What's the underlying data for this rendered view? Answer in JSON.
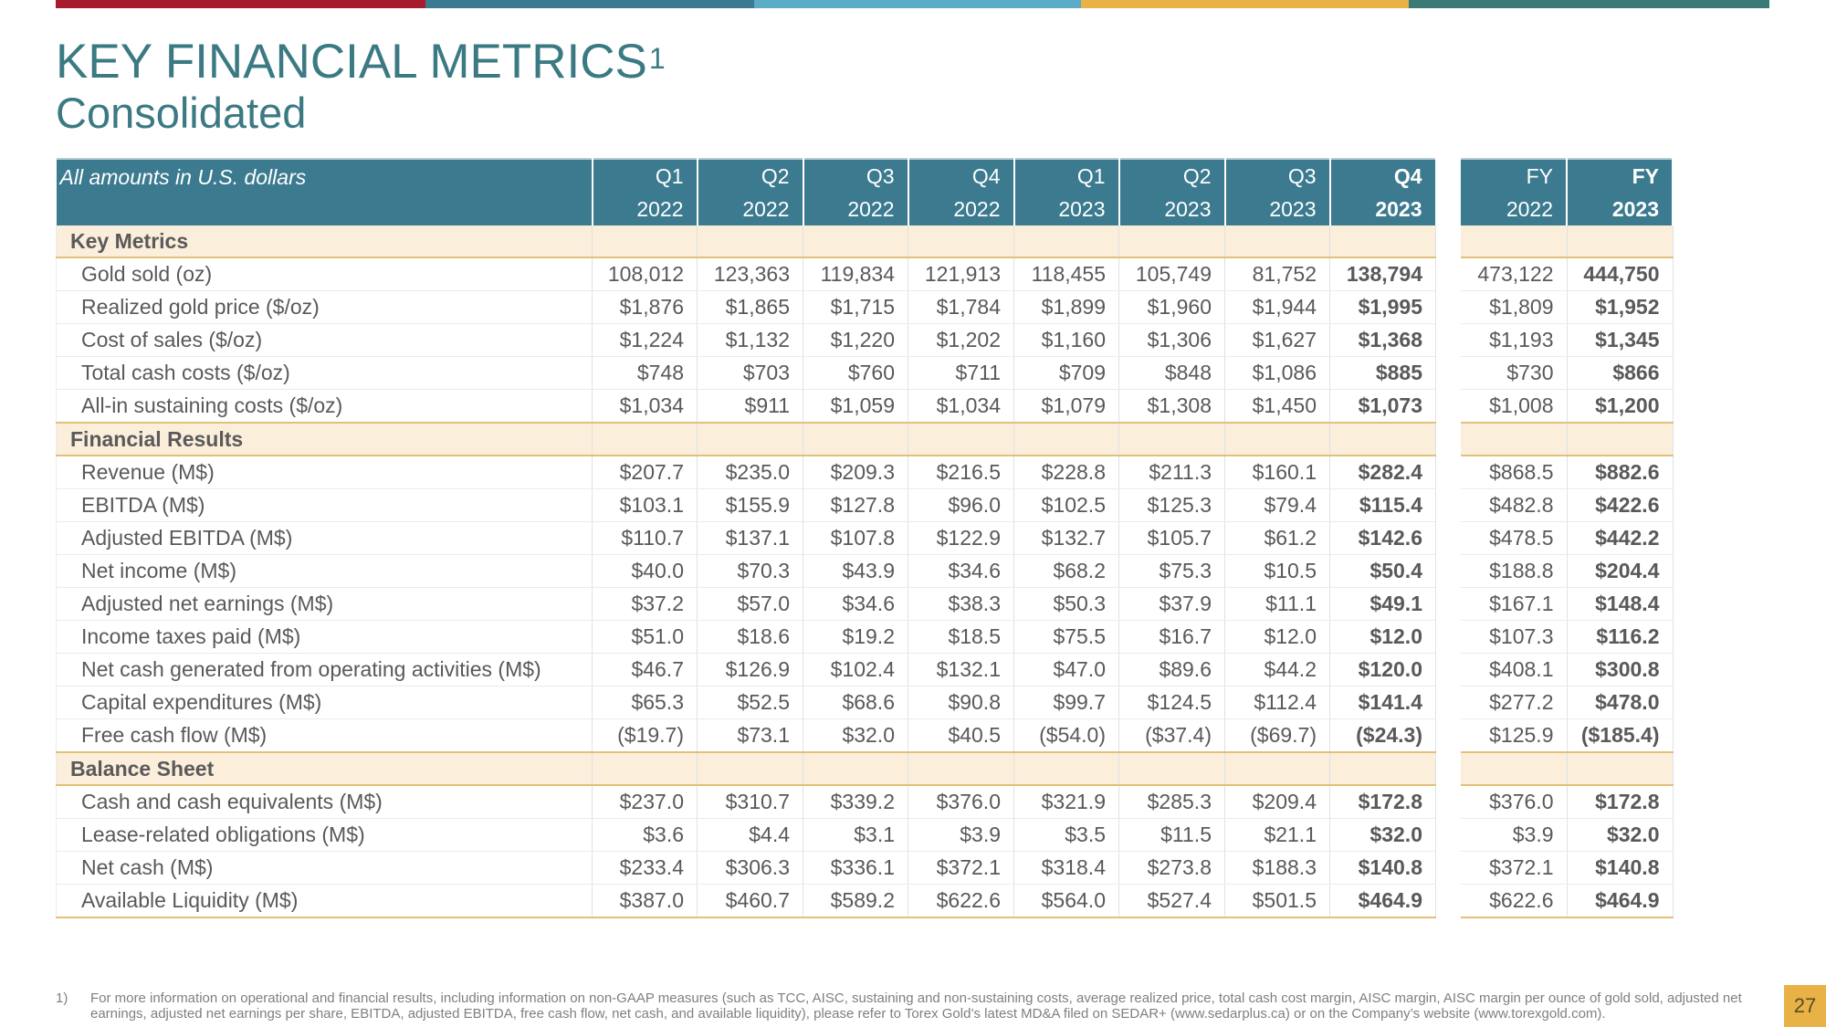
{
  "colors": {
    "bar": [
      "#a61c2d",
      "#3c7a8f",
      "#5aacc6",
      "#e9b247",
      "#3c7a78"
    ],
    "title": "#3b7a83",
    "header_bg": "#3c7a8f",
    "section_bg": "#fbeedb",
    "page_box": "#e9b247"
  },
  "title": "KEY FINANCIAL METRICS",
  "title_sup": "1",
  "subtitle": "Consolidated",
  "table": {
    "unit_note": "All amounts in U.S. dollars",
    "quarters": [
      {
        "q": "Q1",
        "y": "2022",
        "bold": false
      },
      {
        "q": "Q2",
        "y": "2022",
        "bold": false
      },
      {
        "q": "Q3",
        "y": "2022",
        "bold": false
      },
      {
        "q": "Q4",
        "y": "2022",
        "bold": false
      },
      {
        "q": "Q1",
        "y": "2023",
        "bold": false
      },
      {
        "q": "Q2",
        "y": "2023",
        "bold": false
      },
      {
        "q": "Q3",
        "y": "2023",
        "bold": false
      },
      {
        "q": "Q4",
        "y": "2023",
        "bold": true
      }
    ],
    "fy": [
      {
        "q": "FY",
        "y": "2022",
        "bold": false
      },
      {
        "q": "FY",
        "y": "2023",
        "bold": true
      }
    ],
    "sections": [
      {
        "title": "Key Metrics",
        "rows": [
          {
            "label": "Gold sold (oz)",
            "q": [
              "108,012",
              "123,363",
              "119,834",
              "121,913",
              "118,455",
              "105,749",
              "81,752",
              "138,794"
            ],
            "fy": [
              "473,122",
              "444,750"
            ]
          },
          {
            "label": "Realized gold price ($/oz)",
            "q": [
              "$1,876",
              "$1,865",
              "$1,715",
              "$1,784",
              "$1,899",
              "$1,960",
              "$1,944",
              "$1,995"
            ],
            "fy": [
              "$1,809",
              "$1,952"
            ]
          },
          {
            "label": "Cost of sales ($/oz)",
            "q": [
              "$1,224",
              "$1,132",
              "$1,220",
              "$1,202",
              "$1,160",
              "$1,306",
              "$1,627",
              "$1,368"
            ],
            "fy": [
              "$1,193",
              "$1,345"
            ]
          },
          {
            "label": "Total cash costs ($/oz)",
            "q": [
              "$748",
              "$703",
              "$760",
              "$711",
              "$709",
              "$848",
              "$1,086",
              "$885"
            ],
            "fy": [
              "$730",
              "$866"
            ]
          },
          {
            "label": "All-in sustaining costs ($/oz)",
            "q": [
              "$1,034",
              "$911",
              "$1,059",
              "$1,034",
              "$1,079",
              "$1,308",
              "$1,450",
              "$1,073"
            ],
            "fy": [
              "$1,008",
              "$1,200"
            ]
          }
        ]
      },
      {
        "title": "Financial Results",
        "rows": [
          {
            "label": "Revenue (M$)",
            "q": [
              "$207.7",
              "$235.0",
              "$209.3",
              "$216.5",
              "$228.8",
              "$211.3",
              "$160.1",
              "$282.4"
            ],
            "fy": [
              "$868.5",
              "$882.6"
            ]
          },
          {
            "label": "EBITDA (M$)",
            "q": [
              "$103.1",
              "$155.9",
              "$127.8",
              "$96.0",
              "$102.5",
              "$125.3",
              "$79.4",
              "$115.4"
            ],
            "fy": [
              "$482.8",
              "$422.6"
            ]
          },
          {
            "label": "Adjusted EBITDA (M$)",
            "q": [
              "$110.7",
              "$137.1",
              "$107.8",
              "$122.9",
              "$132.7",
              "$105.7",
              "$61.2",
              "$142.6"
            ],
            "fy": [
              "$478.5",
              "$442.2"
            ]
          },
          {
            "label": "Net income (M$)",
            "q": [
              "$40.0",
              "$70.3",
              "$43.9",
              "$34.6",
              "$68.2",
              "$75.3",
              "$10.5",
              "$50.4"
            ],
            "fy": [
              "$188.8",
              "$204.4"
            ]
          },
          {
            "label": "Adjusted net earnings (M$)",
            "q": [
              "$37.2",
              "$57.0",
              "$34.6",
              "$38.3",
              "$50.3",
              "$37.9",
              "$11.1",
              "$49.1"
            ],
            "fy": [
              "$167.1",
              "$148.4"
            ]
          },
          {
            "label": "Income taxes paid (M$)",
            "q": [
              "$51.0",
              "$18.6",
              "$19.2",
              "$18.5",
              "$75.5",
              "$16.7",
              "$12.0",
              "$12.0"
            ],
            "fy": [
              "$107.3",
              "$116.2"
            ]
          },
          {
            "label": "Net cash generated from operating activities (M$)",
            "q": [
              "$46.7",
              "$126.9",
              "$102.4",
              "$132.1",
              "$47.0",
              "$89.6",
              "$44.2",
              "$120.0"
            ],
            "fy": [
              "$408.1",
              "$300.8"
            ]
          },
          {
            "label": "Capital expenditures (M$)",
            "q": [
              "$65.3",
              "$52.5",
              "$68.6",
              "$90.8",
              "$99.7",
              "$124.5",
              "$112.4",
              "$141.4"
            ],
            "fy": [
              "$277.2",
              "$478.0"
            ]
          },
          {
            "label": "Free cash flow (M$)",
            "q": [
              "($19.7)",
              "$73.1",
              "$32.0",
              "$40.5",
              "($54.0)",
              "($37.4)",
              "($69.7)",
              "($24.3)"
            ],
            "fy": [
              "$125.9",
              "($185.4)"
            ]
          }
        ]
      },
      {
        "title": "Balance Sheet",
        "rows": [
          {
            "label": "Cash and cash equivalents (M$)",
            "q": [
              "$237.0",
              "$310.7",
              "$339.2",
              "$376.0",
              "$321.9",
              "$285.3",
              "$209.4",
              "$172.8"
            ],
            "fy": [
              "$376.0",
              "$172.8"
            ]
          },
          {
            "label": "Lease-related obligations (M$)",
            "q": [
              "$3.6",
              "$4.4",
              "$3.1",
              "$3.9",
              "$3.5",
              "$11.5",
              "$21.1",
              "$32.0"
            ],
            "fy": [
              "$3.9",
              "$32.0"
            ]
          },
          {
            "label": "Net cash (M$)",
            "q": [
              "$233.4",
              "$306.3",
              "$336.1",
              "$372.1",
              "$318.4",
              "$273.8",
              "$188.3",
              "$140.8"
            ],
            "fy": [
              "$372.1",
              "$140.8"
            ]
          },
          {
            "label": "Available Liquidity (M$)",
            "q": [
              "$387.0",
              "$460.7",
              "$589.2",
              "$622.6",
              "$564.0",
              "$527.4",
              "$501.5",
              "$464.9"
            ],
            "fy": [
              "$622.6",
              "$464.9"
            ]
          }
        ]
      }
    ]
  },
  "footnote": {
    "number": "1)",
    "text": "For more information on operational and financial results, including information on non-GAAP measures (such as TCC, AISC, sustaining and non-sustaining costs, average realized price, total cash cost margin, AISC margin, AISC margin per ounce of gold sold, adjusted net earnings, adjusted net earnings per share, EBITDA, adjusted EBITDA, free cash flow, net cash, and available liquidity), please refer to Torex Gold’s latest MD&A filed on SEDAR+ (www.sedarplus.ca) or on the Company’s website (www.torexgold.com)."
  },
  "page_number": "27"
}
